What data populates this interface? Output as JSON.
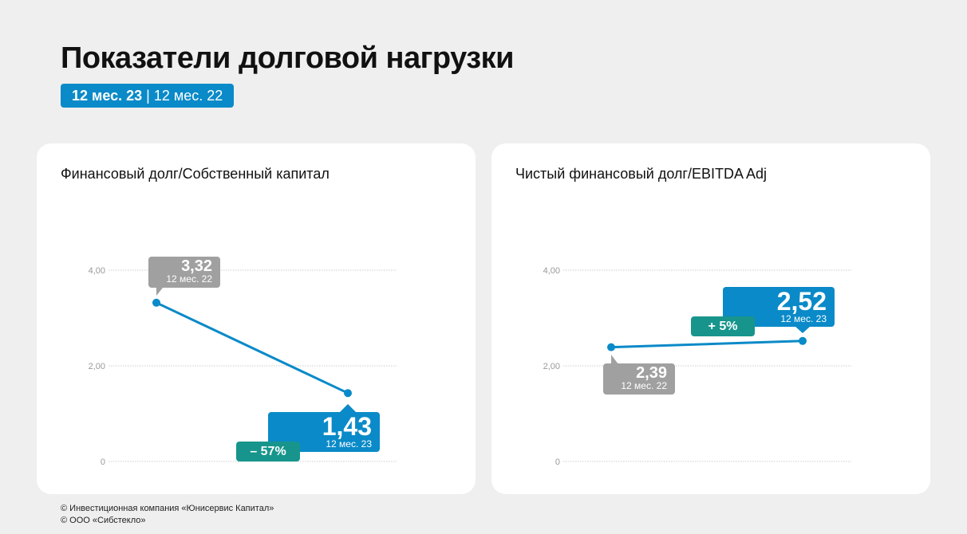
{
  "title": "Показатели долговой нагрузки",
  "period": {
    "current": "12 мес. 23",
    "separator": " | ",
    "previous": "12 мес. 22"
  },
  "colors": {
    "line": "#0a8ac8",
    "previous": "#a0a0a0",
    "change": "#17958c"
  },
  "chart_data": [
    {
      "type": "line",
      "title": "Финансовый долг/Собственный капитал",
      "categories": [
        "12 мес. 22",
        "12 мес. 23"
      ],
      "values": [
        3.32,
        1.43
      ],
      "value_labels": [
        "3,32",
        "1,43"
      ],
      "change": "– 57%",
      "ylim": [
        0,
        4
      ],
      "yticks": [
        "0",
        "2,00",
        "4,00"
      ],
      "grid": true
    },
    {
      "type": "line",
      "title": "Чистый финансовый долг/EBITDA Adj",
      "categories": [
        "12 мес. 22",
        "12 мес. 23"
      ],
      "values": [
        2.39,
        2.52
      ],
      "value_labels": [
        "2,39",
        "2,52"
      ],
      "change": "+ 5%",
      "ylim": [
        0,
        4
      ],
      "yticks": [
        "0",
        "2,00",
        "4,00"
      ],
      "grid": true
    }
  ],
  "footer": [
    "© Инвестиционная компания «Юнисервис Капитал»",
    "© ООО «Сибстекло»"
  ]
}
